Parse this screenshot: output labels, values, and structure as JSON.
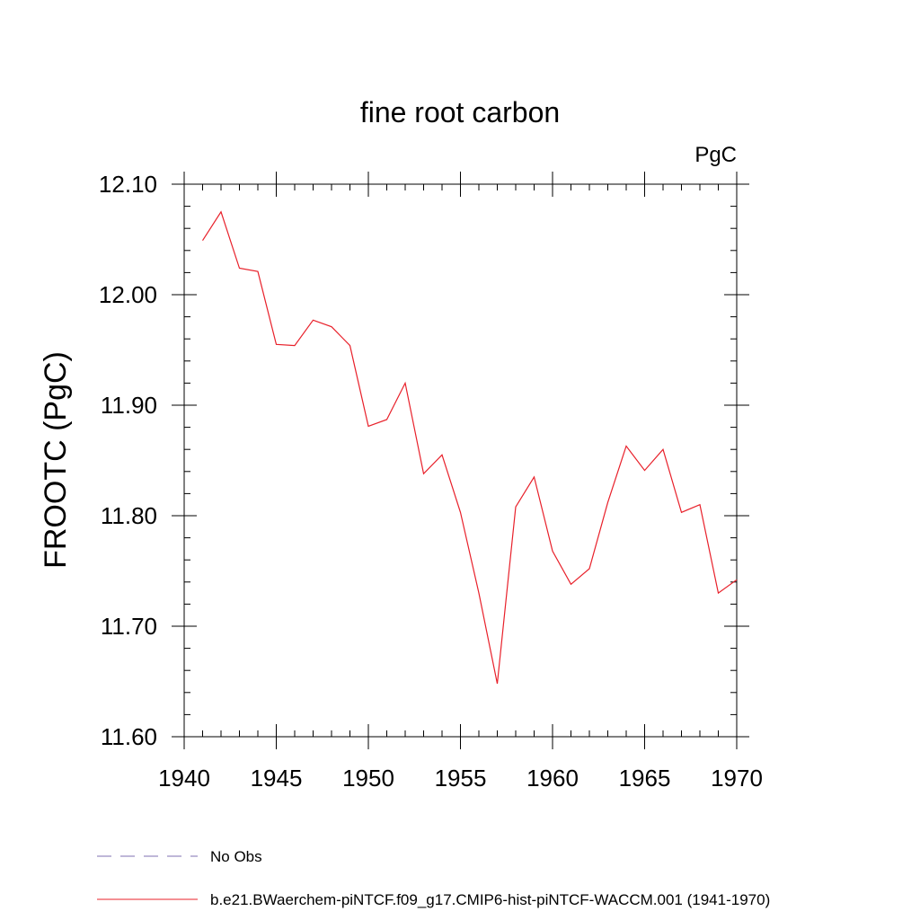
{
  "chart_data": {
    "type": "line",
    "title": "fine root carbon",
    "units_label": "PgC",
    "ylabel": "FROOTC  (PgC)",
    "xlabel": "",
    "xlim": [
      1940,
      1970
    ],
    "ylim": [
      11.6,
      12.1
    ],
    "x_ticks": [
      1940,
      1945,
      1950,
      1955,
      1960,
      1965,
      1970
    ],
    "y_ticks": [
      "11.60",
      "11.70",
      "11.80",
      "11.90",
      "12.00",
      "12.10"
    ],
    "grid": false,
    "legend_position": "bottom-left",
    "legend": [
      {
        "name": "No Obs",
        "color": "#7f6fb0",
        "style": "dashed"
      },
      {
        "name": "b.e21.BWaerchem-piNTCF.f09_g17.CMIP6-hist-piNTCF-WACCM.001 (1941-1970)",
        "color": "#e8202a",
        "style": "solid"
      }
    ],
    "series": [
      {
        "name": "b.e21.BWaerchem-piNTCF.f09_g17.CMIP6-hist-piNTCF-WACCM.001 (1941-1970)",
        "color": "#e8202a",
        "x": [
          1941,
          1942,
          1943,
          1944,
          1945,
          1946,
          1947,
          1948,
          1949,
          1950,
          1951,
          1952,
          1953,
          1954,
          1955,
          1956,
          1957,
          1958,
          1959,
          1960,
          1961,
          1962,
          1963,
          1964,
          1965,
          1966,
          1967,
          1968,
          1969,
          1970
        ],
        "y": [
          12.049,
          12.075,
          12.024,
          12.021,
          11.955,
          11.954,
          11.977,
          11.971,
          11.954,
          11.881,
          11.887,
          11.92,
          11.838,
          11.855,
          11.803,
          11.73,
          11.648,
          11.808,
          11.835,
          11.768,
          11.738,
          11.752,
          11.812,
          11.863,
          11.841,
          11.86,
          11.803,
          11.81,
          11.73,
          11.742
        ]
      }
    ]
  }
}
